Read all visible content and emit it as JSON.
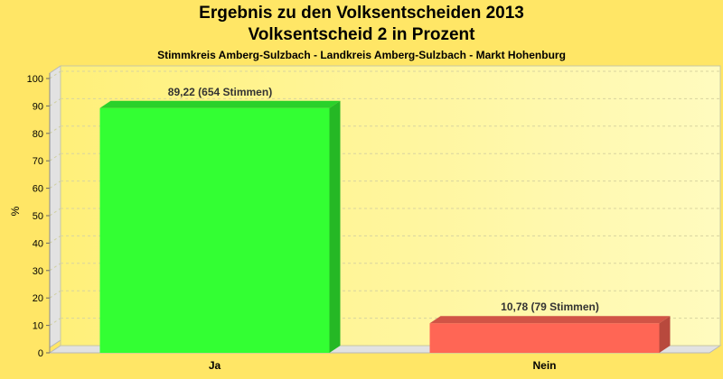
{
  "chart_data": {
    "type": "bar",
    "title": "Ergebnis zu den Volksentscheiden 2013",
    "subtitle": "Volksentscheid 2 in Prozent",
    "caption": "Stimmkreis Amberg-Sulzbach - Landkreis Amberg-Sulzbach - Markt Hohenburg",
    "xlabel": "",
    "ylabel": "%",
    "ylim": [
      0,
      100
    ],
    "yticks": [
      "0",
      "10",
      "20",
      "30",
      "40",
      "50",
      "60",
      "70",
      "80",
      "90",
      "100"
    ],
    "categories": [
      "Ja",
      "Nein"
    ],
    "values": [
      89.22,
      10.78
    ],
    "data_labels": [
      "89,22 (654 Stimmen)",
      "10,78 (79 Stimmen)"
    ],
    "colors": [
      "#33ff33",
      "#ff6655"
    ],
    "grid": true,
    "legend": "none"
  }
}
